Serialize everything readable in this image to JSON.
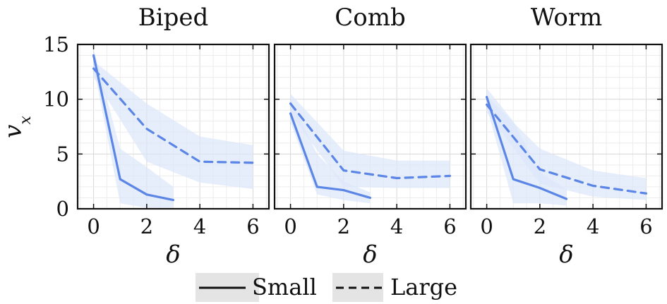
{
  "chart_data": {
    "type": "line",
    "ylabel": "v_x",
    "xlabel": "δ",
    "xlim": [
      -0.6,
      6.6
    ],
    "ylim": [
      0,
      15
    ],
    "xticks": [
      "0",
      "2",
      "4",
      "6"
    ],
    "yticks": [
      "0",
      "5",
      "10",
      "15"
    ],
    "grid": true,
    "colors": {
      "line": "#5b86e6",
      "band": "#dce7fb"
    },
    "legend": {
      "placement": "bottom",
      "entries": [
        {
          "label": "Small",
          "style": "solid"
        },
        {
          "label": "Large",
          "style": "dashed"
        }
      ]
    },
    "panels": [
      {
        "title": "Biped",
        "series": [
          {
            "name": "Small",
            "style": "solid",
            "x": [
              0,
              1,
              2,
              3
            ],
            "y": [
              14.0,
              2.7,
              1.3,
              0.8
            ],
            "lower": [
              13.0,
              0.5,
              0.1,
              0.1
            ],
            "upper": [
              14.6,
              5.5,
              3.8,
              2.0
            ]
          },
          {
            "name": "Large",
            "style": "dashed",
            "x": [
              0,
              2,
              4,
              6
            ],
            "y": [
              12.8,
              7.3,
              4.3,
              4.2
            ],
            "lower": [
              12.0,
              4.3,
              2.4,
              1.8
            ],
            "upper": [
              13.5,
              9.6,
              6.6,
              5.8
            ]
          }
        ]
      },
      {
        "title": "Comb",
        "series": [
          {
            "name": "Small",
            "style": "solid",
            "x": [
              0,
              1,
              2,
              3
            ],
            "y": [
              8.7,
              2.0,
              1.7,
              1.0
            ],
            "lower": [
              7.9,
              1.3,
              0.8,
              0.5
            ],
            "upper": [
              10.0,
              5.0,
              2.5,
              1.5
            ]
          },
          {
            "name": "Large",
            "style": "dashed",
            "x": [
              0,
              2,
              4,
              6
            ],
            "y": [
              9.6,
              3.5,
              2.8,
              3.0
            ],
            "lower": [
              8.7,
              2.0,
              1.9,
              1.9
            ],
            "upper": [
              10.5,
              5.3,
              4.4,
              4.4
            ]
          }
        ]
      },
      {
        "title": "Worm",
        "series": [
          {
            "name": "Small",
            "style": "solid",
            "x": [
              0,
              1,
              2,
              3
            ],
            "y": [
              10.2,
              2.7,
              1.9,
              0.9
            ],
            "lower": [
              9.3,
              0.5,
              0.5,
              0.3
            ],
            "upper": [
              11.0,
              8.0,
              3.3,
              1.8
            ]
          },
          {
            "name": "Large",
            "style": "dashed",
            "x": [
              0,
              2,
              4,
              6
            ],
            "y": [
              9.5,
              3.6,
              2.1,
              1.4
            ],
            "lower": [
              8.8,
              2.3,
              1.1,
              0.8
            ],
            "upper": [
              10.3,
              5.5,
              3.5,
              2.8
            ]
          }
        ]
      }
    ]
  }
}
